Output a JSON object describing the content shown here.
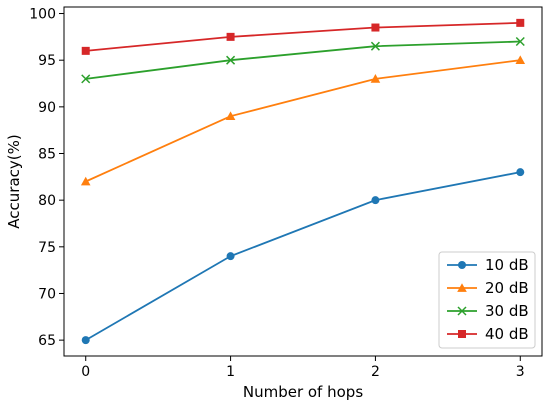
{
  "chart_data": {
    "type": "line",
    "title": "",
    "xlabel": "Number of hops",
    "ylabel": "Accuracy(%)",
    "x": [
      0,
      1,
      2,
      3
    ],
    "xticks": [
      0,
      1,
      2,
      3
    ],
    "yticks": [
      65,
      70,
      75,
      80,
      85,
      90,
      95,
      100
    ],
    "xlim": [
      -0.15,
      3.15
    ],
    "ylim": [
      63.3,
      100.7
    ],
    "grid": false,
    "legend_position": "bottom-right",
    "series": [
      {
        "name": "10 dB",
        "values": [
          65,
          74,
          80,
          83
        ],
        "color": "#1f77b4",
        "marker": "circle"
      },
      {
        "name": "20 dB",
        "values": [
          82,
          89,
          93,
          95
        ],
        "color": "#ff7f0e",
        "marker": "triangle"
      },
      {
        "name": "30 dB",
        "values": [
          93,
          95,
          96.5,
          97
        ],
        "color": "#2ca02c",
        "marker": "x"
      },
      {
        "name": "40 dB",
        "values": [
          96,
          97.5,
          98.5,
          99
        ],
        "color": "#d62728",
        "marker": "square"
      }
    ]
  }
}
